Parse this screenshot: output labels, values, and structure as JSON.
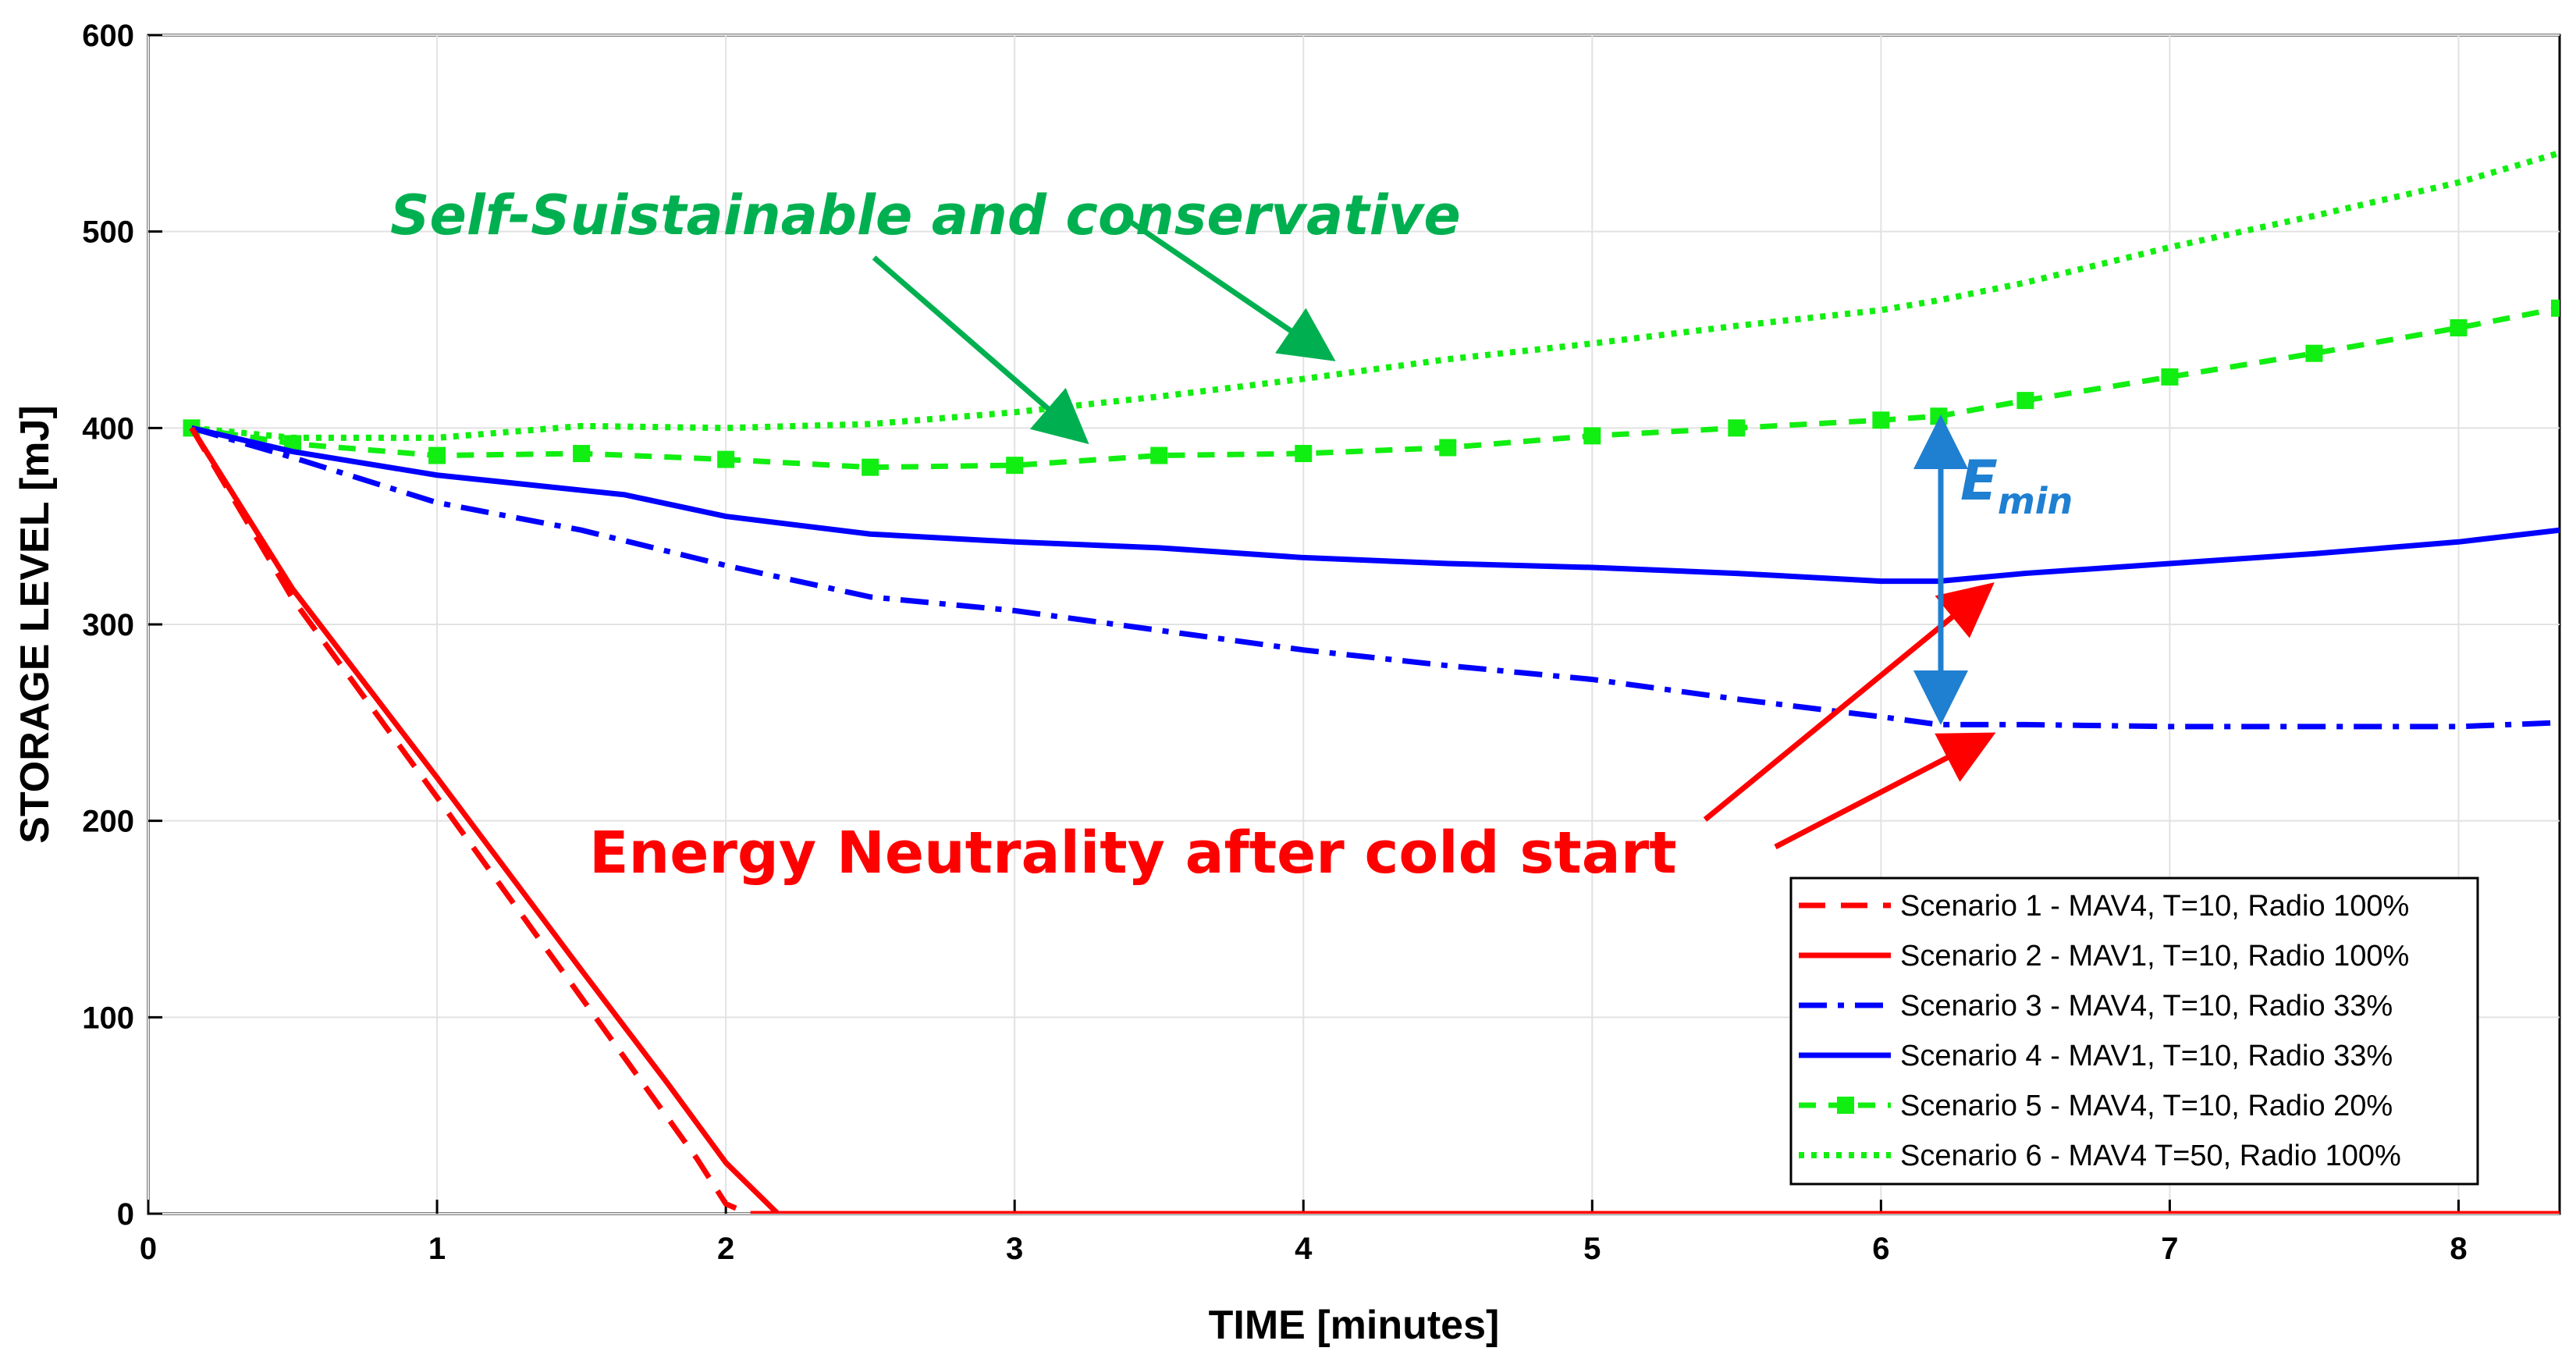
{
  "chart_data": {
    "type": "line",
    "title": "",
    "xlabel": "TIME [minutes]",
    "ylabel": "STORAGE LEVEL [mJ]",
    "xlim": [
      0,
      8.35
    ],
    "ylim": [
      0,
      600
    ],
    "xticks": [
      0,
      1,
      2,
      3,
      4,
      5,
      6,
      7,
      8
    ],
    "yticks": [
      0,
      100,
      200,
      300,
      400,
      500,
      600
    ],
    "grid": true,
    "legend_position": "bottom-right",
    "series": [
      {
        "name": "Scenario 1 - MAV4, T=10, Radio 100%",
        "color": "#ff0000",
        "style": "dashed",
        "x": [
          0.15,
          0.5,
          1.0,
          1.5,
          1.9,
          2.0,
          2.08,
          2.2,
          3,
          4,
          5,
          6,
          7,
          8,
          8.35
        ],
        "y": [
          400,
          313,
          212,
          110,
          28,
          5,
          0,
          0,
          0,
          0,
          0,
          0,
          0,
          0,
          0
        ]
      },
      {
        "name": "Scenario 2 - MAV1, T=10, Radio 100%",
        "color": "#ff0000",
        "style": "solid",
        "x": [
          0.15,
          0.5,
          1.0,
          1.5,
          1.8,
          2.0,
          2.18,
          3,
          4,
          5,
          6,
          7,
          8,
          8.35
        ],
        "y": [
          400,
          318,
          222,
          124,
          66,
          26,
          0,
          0,
          0,
          0,
          0,
          0,
          0,
          0
        ]
      },
      {
        "name": "Scenario 3 - MAV4, T=10, Radio 33%",
        "color": "#0000ff",
        "style": "dashdot",
        "x": [
          0.15,
          0.5,
          1.0,
          1.5,
          2.0,
          2.5,
          3.0,
          3.5,
          4.0,
          4.5,
          5.0,
          5.5,
          6.0,
          6.2,
          6.5,
          7.0,
          7.5,
          8.0,
          8.35
        ],
        "y": [
          400,
          385,
          362,
          348,
          330,
          314,
          307,
          297,
          287,
          279,
          272,
          262,
          253,
          249,
          249,
          248,
          248,
          248,
          250
        ]
      },
      {
        "name": "Scenario 4 - MAV1, T=10, Radio 33%",
        "color": "#0000ff",
        "style": "solid",
        "x": [
          0.15,
          0.5,
          1.0,
          1.65,
          2.0,
          2.5,
          3.0,
          3.5,
          4.0,
          4.5,
          5.0,
          5.5,
          6.0,
          6.2,
          6.5,
          7.0,
          7.5,
          8.0,
          8.35
        ],
        "y": [
          400,
          388,
          376,
          366,
          355,
          346,
          342,
          339,
          334,
          331,
          329,
          326,
          322,
          322,
          326,
          331,
          336,
          342,
          348
        ]
      },
      {
        "name": "Scenario 5 - MAV4, T=10, Radio 20%",
        "color": "#11ee11",
        "style": "dashed-square",
        "x": [
          0.15,
          0.5,
          1.0,
          1.5,
          2.0,
          2.5,
          3.0,
          3.5,
          4.0,
          4.5,
          5.0,
          5.5,
          6.0,
          6.2,
          6.5,
          7.0,
          7.5,
          8.0,
          8.35
        ],
        "y": [
          400,
          392,
          386,
          387,
          384,
          380,
          381,
          386,
          387,
          390,
          396,
          400,
          404,
          406,
          414,
          426,
          438,
          451,
          461
        ]
      },
      {
        "name": "Scenario 6 - MAV4 T=50, Radio 100%",
        "color": "#11ee11",
        "style": "dotted",
        "x": [
          0.15,
          0.5,
          1.0,
          1.5,
          2.0,
          2.5,
          3.0,
          3.5,
          4.0,
          4.5,
          5.0,
          5.5,
          6.0,
          6.2,
          6.5,
          7.0,
          7.5,
          8.0,
          8.35
        ],
        "y": [
          400,
          395,
          395,
          401,
          400,
          402,
          408,
          416,
          425,
          435,
          443,
          452,
          460,
          465,
          474,
          492,
          508,
          525,
          540
        ]
      }
    ],
    "annotations": [
      {
        "text": "Self-Suistainable and conservative",
        "color": "#00b050"
      },
      {
        "text": "Energy Neutrality after cold start",
        "color": "#ff0000"
      },
      {
        "text": "E",
        "subscript": "min",
        "color": "#1f7fd1"
      }
    ]
  }
}
